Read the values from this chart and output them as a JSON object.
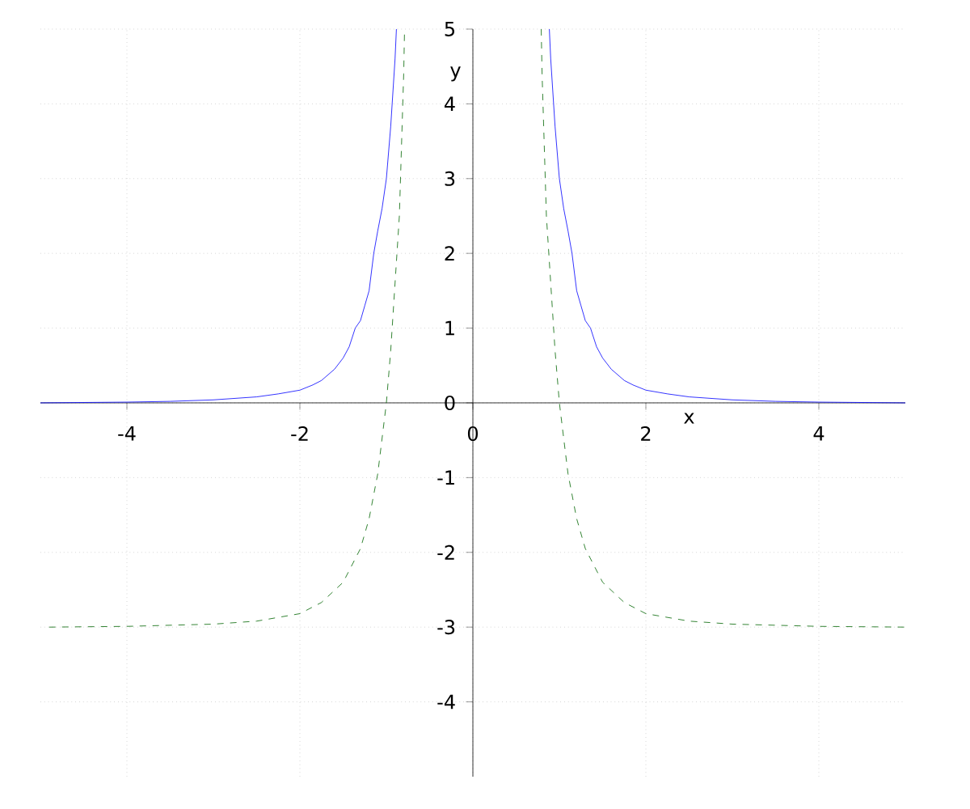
{
  "chart_data": {
    "type": "line",
    "xlabel": "x",
    "ylabel": "y",
    "xlim": [
      -5,
      5
    ],
    "ylim": [
      -5,
      5
    ],
    "xticks": [
      -4,
      -2,
      0,
      2,
      4
    ],
    "yticks": [
      -4,
      -3,
      -2,
      -1,
      0,
      1,
      2,
      3,
      4,
      5
    ],
    "grid": true,
    "marker": "none",
    "series": [
      {
        "color": "#0000ff",
        "line_style": "solid",
        "x": [
          -5,
          -4,
          -3.5,
          -3,
          -2.5,
          -2.25,
          -2,
          -1.85,
          -1.75,
          -1.6,
          -1.5,
          -1.43,
          -1.36,
          -1.3,
          -1.25,
          -1.2,
          -1.146,
          -1.1,
          -1.05,
          -1,
          -0.95,
          -0.9,
          -0.884,
          null,
          0.884,
          0.9,
          0.95,
          1,
          1.05,
          1.1,
          1.146,
          1.2,
          1.25,
          1.3,
          1.36,
          1.43,
          1.5,
          1.6,
          1.75,
          1.85,
          2,
          2.25,
          2.5,
          3,
          3.5,
          4,
          5
        ],
        "values": [
          0,
          0.01,
          0.02,
          0.04,
          0.08,
          0.12,
          0.17,
          0.24,
          0.3,
          0.45,
          0.6,
          0.75,
          1.0,
          1.1,
          1.3,
          1.5,
          2.0,
          2.3,
          2.6,
          3.0,
          3.7,
          4.6,
          5,
          null,
          5,
          4.6,
          3.7,
          3.0,
          2.6,
          2.3,
          2.0,
          1.5,
          1.3,
          1.1,
          1.0,
          0.75,
          0.6,
          0.45,
          0.3,
          0.24,
          0.17,
          0.12,
          0.08,
          0.04,
          0.02,
          0.01,
          0
        ]
      },
      {
        "color": "#006400",
        "line_style": "dashed",
        "x": [
          -4.9,
          -4,
          -3,
          -2.5,
          -2,
          -1.75,
          -1.5,
          -1.3,
          -1.2,
          -1.1,
          -1,
          -0.95,
          -0.9,
          -0.85,
          -0.8,
          -0.79,
          null,
          0.79,
          0.8,
          0.85,
          0.9,
          0.95,
          1,
          1.1,
          1.2,
          1.3,
          1.5,
          1.75,
          2,
          2.5,
          3,
          4,
          5
        ],
        "values": [
          -3.0,
          -2.99,
          -2.96,
          -2.92,
          -2.82,
          -2.67,
          -2.4,
          -1.95,
          -1.55,
          -0.95,
          0,
          0.7,
          1.6,
          2.5,
          4.4,
          5,
          null,
          5,
          4.4,
          2.5,
          1.6,
          0.7,
          0,
          -0.95,
          -1.55,
          -1.95,
          -2.4,
          -2.67,
          -2.82,
          -2.92,
          -2.96,
          -2.99,
          -3.0
        ]
      }
    ]
  }
}
